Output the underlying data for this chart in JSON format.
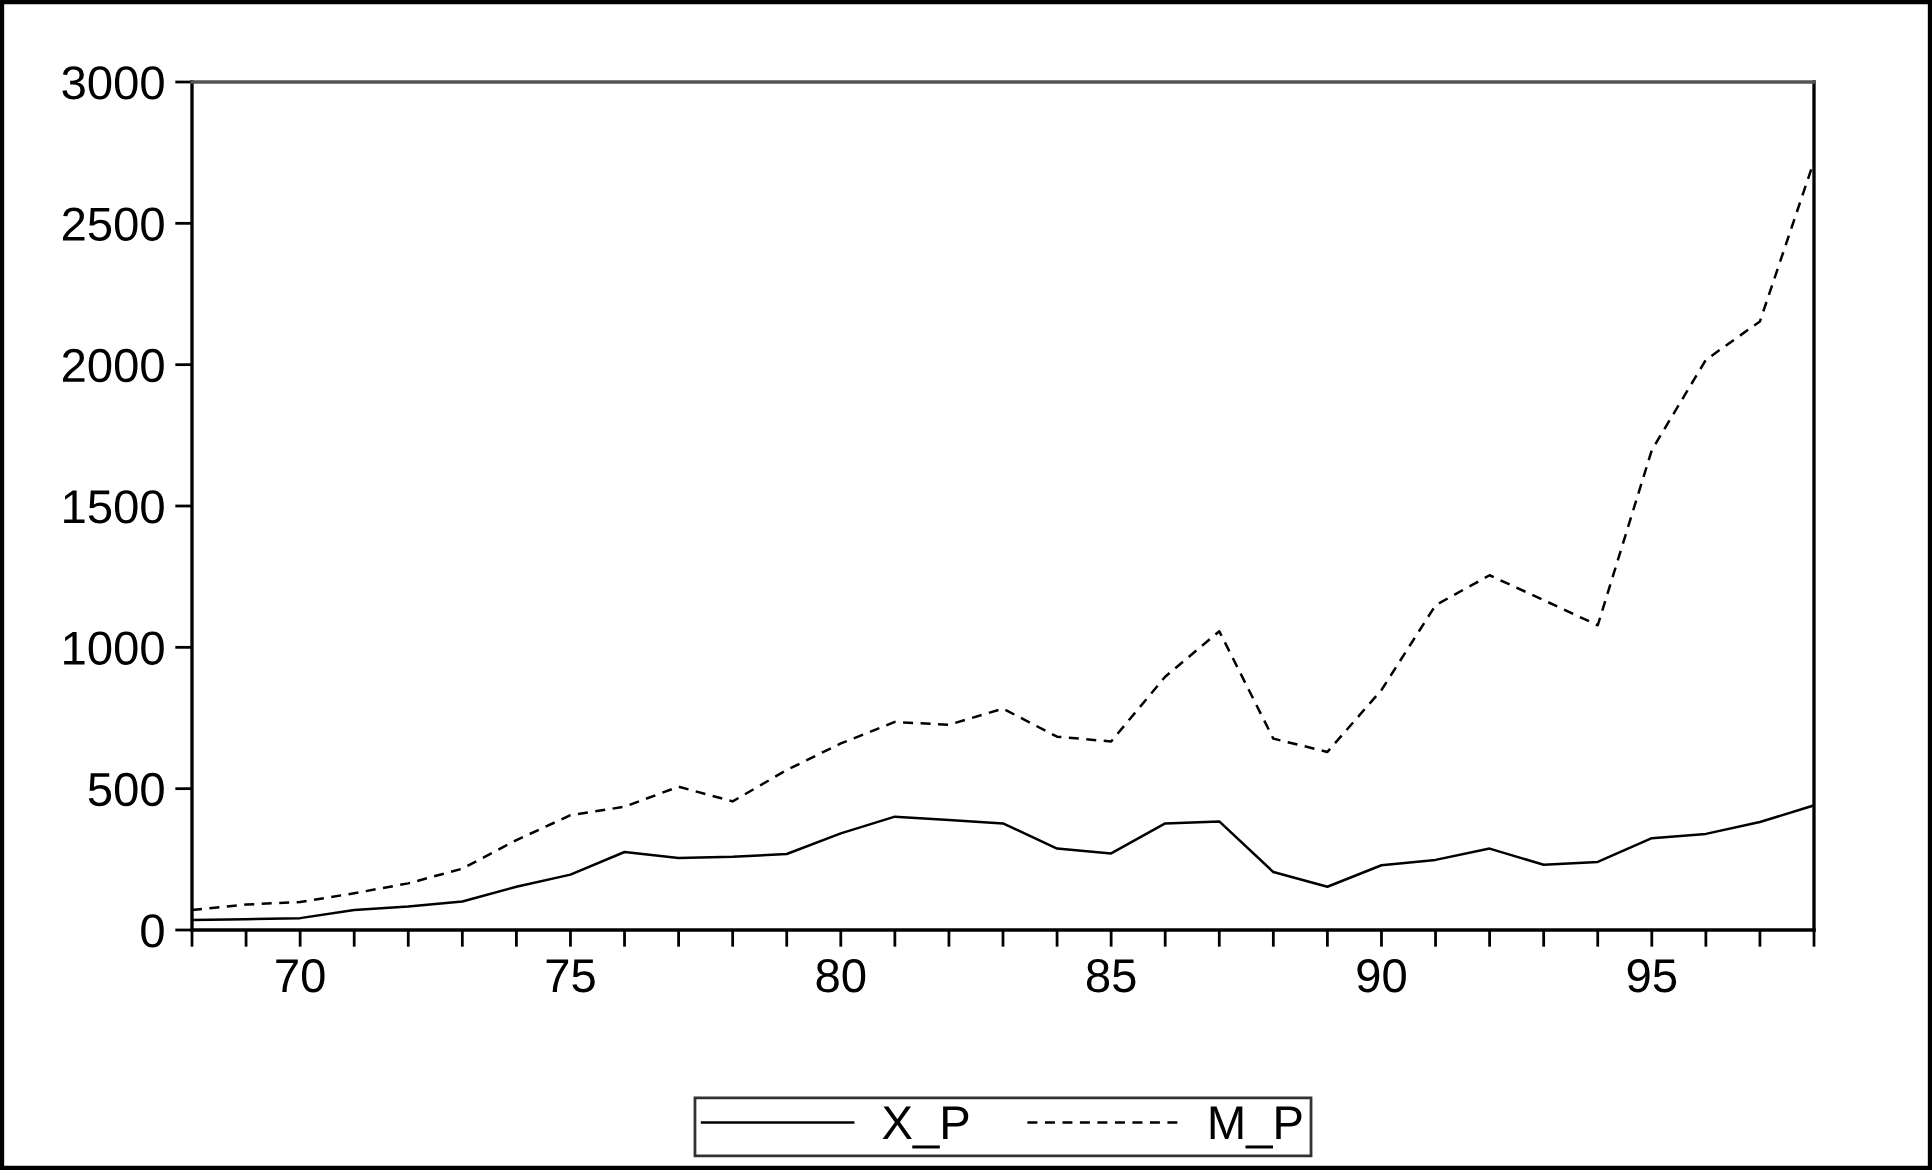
{
  "chart_data": {
    "type": "line",
    "x": [
      68,
      69,
      70,
      71,
      72,
      73,
      74,
      75,
      76,
      77,
      78,
      79,
      80,
      81,
      82,
      83,
      84,
      85,
      86,
      87,
      88,
      89,
      90,
      91,
      92,
      93,
      94,
      95,
      96,
      97,
      98
    ],
    "series": [
      {
        "name": "X_P",
        "color": "#000000",
        "line_style": "solid",
        "values": [
          35,
          38,
          42,
          71,
          83,
          101,
          153,
          196,
          276,
          255,
          259,
          269,
          342,
          401,
          389,
          377,
          288,
          271,
          377,
          384,
          205,
          153,
          229,
          248,
          288,
          231,
          241,
          325,
          340,
          382,
          441
        ]
      },
      {
        "name": "M_P",
        "color": "#000000",
        "line_style": "dashed",
        "values": [
          71,
          90,
          99,
          130,
          165,
          217,
          318,
          406,
          436,
          507,
          455,
          566,
          660,
          736,
          726,
          783,
          684,
          667,
          896,
          1057,
          677,
          630,
          849,
          1149,
          1255,
          1167,
          1078,
          1698,
          2017,
          2153,
          2720
        ]
      }
    ],
    "xlim": [
      68,
      98
    ],
    "xticks": [
      {
        "value": 68,
        "label": null
      },
      {
        "value": 69,
        "label": null
      },
      70,
      {
        "value": 71,
        "label": null
      },
      {
        "value": 72,
        "label": null
      },
      {
        "value": 73,
        "label": null
      },
      {
        "value": 74,
        "label": null
      },
      75,
      {
        "value": 76,
        "label": null
      },
      {
        "value": 77,
        "label": null
      },
      {
        "value": 78,
        "label": null
      },
      {
        "value": 79,
        "label": null
      },
      80,
      {
        "value": 81,
        "label": null
      },
      {
        "value": 82,
        "label": null
      },
      {
        "value": 83,
        "label": null
      },
      {
        "value": 84,
        "label": null
      },
      85,
      {
        "value": 86,
        "label": null
      },
      {
        "value": 87,
        "label": null
      },
      {
        "value": 88,
        "label": null
      },
      {
        "value": 89,
        "label": null
      },
      90,
      {
        "value": 91,
        "label": null
      },
      {
        "value": 92,
        "label": null
      },
      {
        "value": 93,
        "label": null
      },
      {
        "value": 94,
        "label": null
      },
      95,
      {
        "value": 96,
        "label": null
      },
      {
        "value": 97,
        "label": null
      },
      {
        "value": 98,
        "label": null
      }
    ],
    "ylim": [
      0,
      3000
    ],
    "yticks": [
      0,
      500,
      1000,
      1500,
      2000,
      2500,
      3000
    ],
    "grid": false,
    "legend": "bottom"
  }
}
